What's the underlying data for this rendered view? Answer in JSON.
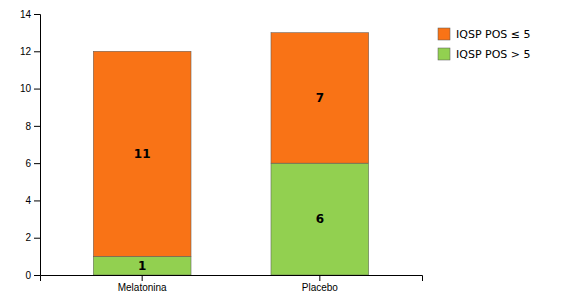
{
  "chart_data": {
    "type": "bar",
    "stacked": true,
    "data_labels": true,
    "legend": "right",
    "grid": false,
    "categories": [
      "Melatonina",
      "Placebo"
    ],
    "series": [
      {
        "name": "IQSP POS > 5",
        "color": "#92D050",
        "values": [
          1,
          6
        ]
      },
      {
        "name": "IQSP POS ≤ 5",
        "color": "#F97316",
        "values": [
          11,
          7
        ]
      }
    ],
    "ylim": [
      0,
      14
    ],
    "yticks": [
      0,
      2,
      4,
      6,
      8,
      10,
      12,
      14
    ]
  }
}
